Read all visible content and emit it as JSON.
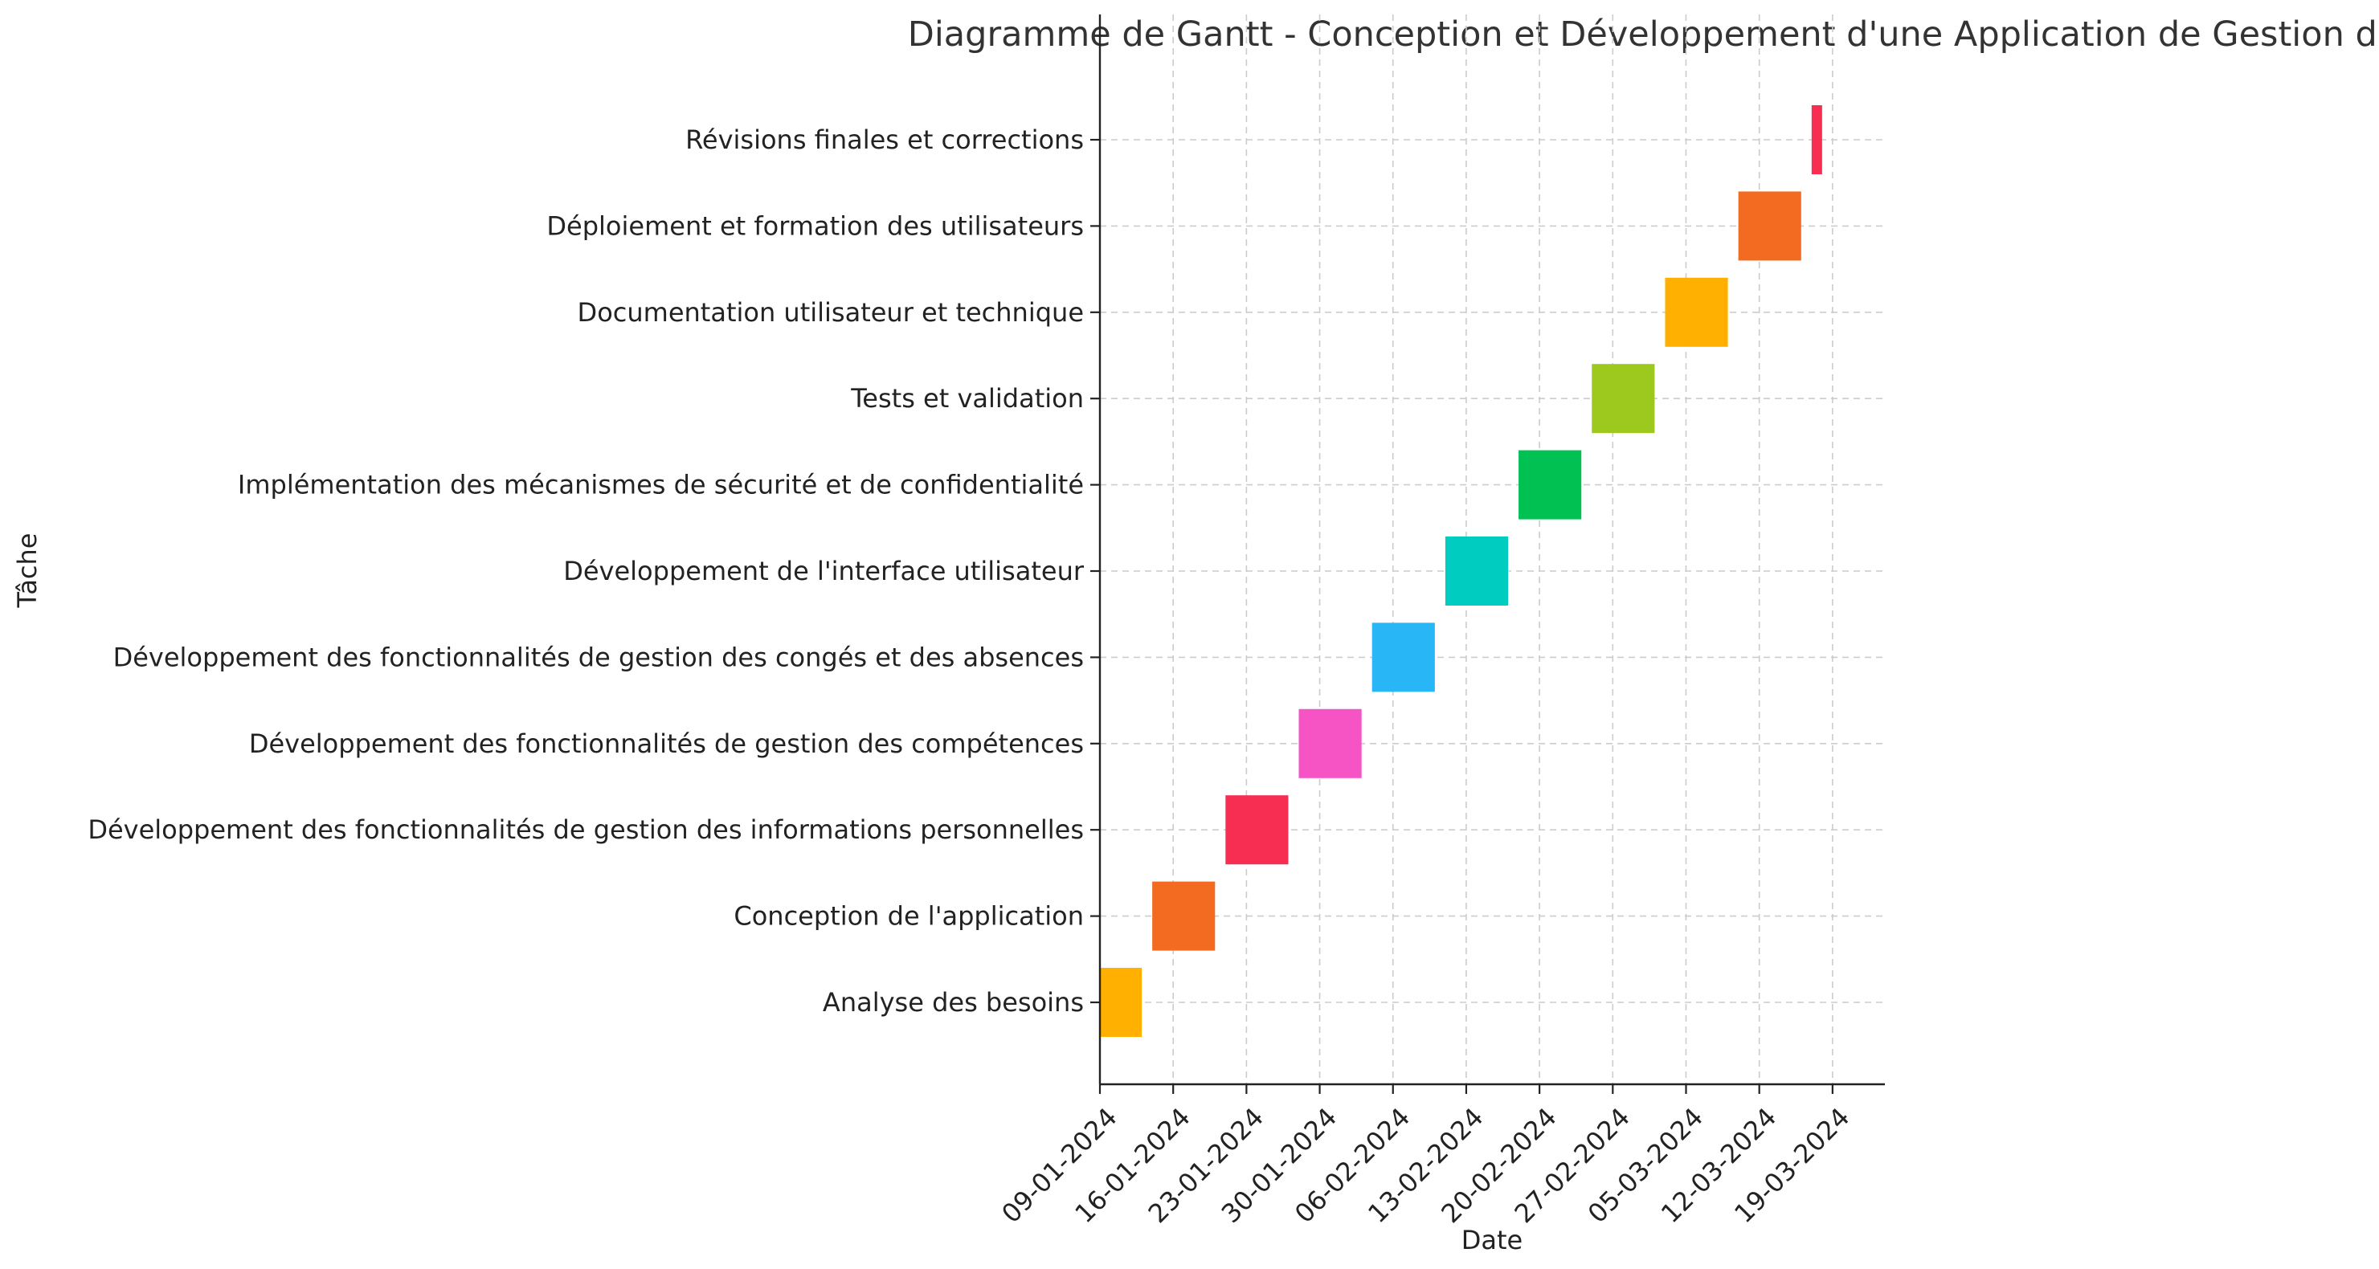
{
  "chart_data": {
    "type": "gantt",
    "title": "Diagramme de Gantt - Conception et Développement d'une Application de Gestion des Employés",
    "xlabel": "Date",
    "ylabel": "Tâche",
    "x_type": "date",
    "xlim": [
      "2024-01-09",
      "2024-03-24"
    ],
    "grid": true,
    "x_ticks": [
      "09-01-2024",
      "16-01-2024",
      "23-01-2024",
      "30-01-2024",
      "06-02-2024",
      "13-02-2024",
      "20-02-2024",
      "27-02-2024",
      "05-03-2024",
      "12-03-2024",
      "19-03-2024"
    ],
    "x_tick_dates": [
      "2024-01-09",
      "2024-01-16",
      "2024-01-23",
      "2024-01-30",
      "2024-02-06",
      "2024-02-13",
      "2024-02-20",
      "2024-02-27",
      "2024-03-05",
      "2024-03-12",
      "2024-03-19"
    ],
    "tasks": [
      {
        "name": "Analyse des besoins",
        "start": "2024-01-09",
        "end": "2024-01-13",
        "color": "#FFB000"
      },
      {
        "name": "Conception de l'application",
        "start": "2024-01-14",
        "end": "2024-01-20",
        "color": "#F26B21"
      },
      {
        "name": "Développement des fonctionnalités de gestion des informations personnelles",
        "start": "2024-01-21",
        "end": "2024-01-27",
        "color": "#F72D52"
      },
      {
        "name": "Développement des fonctionnalités de gestion des compétences",
        "start": "2024-01-28",
        "end": "2024-02-03",
        "color": "#F654C5"
      },
      {
        "name": "Développement des fonctionnalités de gestion des congés et des absences",
        "start": "2024-02-04",
        "end": "2024-02-10",
        "color": "#29B6F6"
      },
      {
        "name": "Développement de l'interface utilisateur",
        "start": "2024-02-11",
        "end": "2024-02-17",
        "color": "#00CCC0"
      },
      {
        "name": "Implémentation des mécanismes de sécurité et de confidentialité",
        "start": "2024-02-18",
        "end": "2024-02-24",
        "color": "#00C152"
      },
      {
        "name": "Tests et validation",
        "start": "2024-02-25",
        "end": "2024-03-02",
        "color": "#9DC81E"
      },
      {
        "name": "Documentation utilisateur et technique",
        "start": "2024-03-03",
        "end": "2024-03-09",
        "color": "#FFB000"
      },
      {
        "name": "Déploiement et formation des utilisateurs",
        "start": "2024-03-10",
        "end": "2024-03-16",
        "color": "#F26B21"
      },
      {
        "name": "Révisions finales et corrections",
        "start": "2024-03-17",
        "end": "2024-03-18",
        "color": "#F72D52"
      }
    ]
  }
}
